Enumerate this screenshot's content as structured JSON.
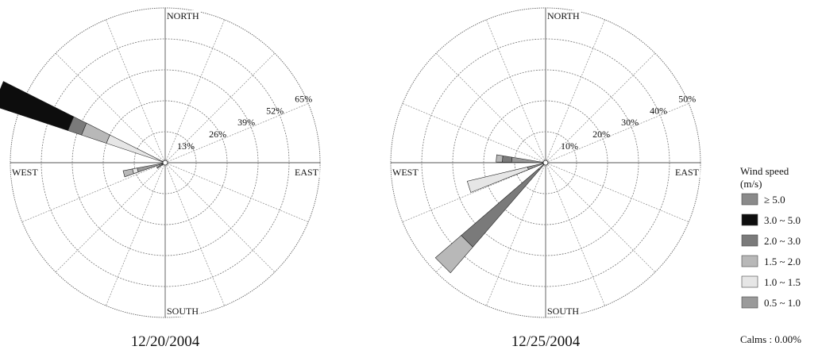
{
  "legend": {
    "title": "Wind speed",
    "unit": "(m/s)",
    "calms": "Calms : 0.00%",
    "bins": [
      {
        "label": "≥ 5.0",
        "color": "#8a8a8a"
      },
      {
        "label": "3.0 ~ 5.0",
        "color": "#0d0d0d"
      },
      {
        "label": "2.0 ~ 3.0",
        "color": "#7a7a7a"
      },
      {
        "label": "1.5 ~ 2.0",
        "color": "#b8b8b8"
      },
      {
        "label": "1.0 ~ 1.5",
        "color": "#e6e6e6"
      },
      {
        "label": "0.5 ~ 1.0",
        "color": "#9a9a9a"
      }
    ]
  },
  "chart_data": [
    {
      "type": "windrose",
      "title": "12/20/2004",
      "directions": {
        "north": "NORTH",
        "south": "SOUTH",
        "east": "EAST",
        "west": "WEST"
      },
      "rmax": 65,
      "ring_values": [
        13,
        26,
        39,
        52,
        65
      ],
      "ring_labels": [
        "13%",
        "26%",
        "39%",
        "52%",
        "65%"
      ],
      "petals": [
        {
          "direction": 292.5,
          "segments": [
            {
              "bin": "0.5 ~ 1.0",
              "value": 1
            },
            {
              "bin": "1.0 ~ 1.5",
              "value": 25
            },
            {
              "bin": "1.5 ~ 2.0",
              "value": 11
            },
            {
              "bin": "2.0 ~ 3.0",
              "value": 6
            },
            {
              "bin": "3.0 ~ 5.0",
              "value": 33
            }
          ]
        },
        {
          "direction": 255,
          "segments": [
            {
              "bin": "0.5 ~ 1.0",
              "value": 12
            },
            {
              "bin": "1.0 ~ 1.5",
              "value": 2
            },
            {
              "bin": "1.5 ~ 2.0",
              "value": 4
            }
          ]
        },
        {
          "direction": 237.5,
          "segments": [
            {
              "bin": "0.5 ~ 1.0",
              "value": 4
            }
          ]
        }
      ]
    },
    {
      "type": "windrose",
      "title": "12/25/2004",
      "directions": {
        "north": "NORTH",
        "south": "SOUTH",
        "east": "EAST",
        "west": "WEST"
      },
      "rmax": 50,
      "ring_values": [
        10,
        20,
        30,
        40,
        50
      ],
      "ring_labels": [
        "10%",
        "20%",
        "30%",
        "40%",
        "50%"
      ],
      "petals": [
        {
          "direction": 275,
          "segments": [
            {
              "bin": "0.5 ~ 1.0",
              "value": 11
            },
            {
              "bin": "2.0 ~ 3.0",
              "value": 3
            },
            {
              "bin": "1.5 ~ 2.0",
              "value": 2
            }
          ]
        },
        {
          "direction": 252.5,
          "segments": [
            {
              "bin": "0.5 ~ 1.0",
              "value": 6
            },
            {
              "bin": "1.0 ~ 1.5",
              "value": 20
            }
          ]
        },
        {
          "direction": 225,
          "segments": [
            {
              "bin": "0.5 ~ 1.0",
              "value": 3
            },
            {
              "bin": "2.0 ~ 3.0",
              "value": 33
            },
            {
              "bin": "1.5 ~ 2.0",
              "value": 11
            }
          ]
        }
      ]
    }
  ]
}
